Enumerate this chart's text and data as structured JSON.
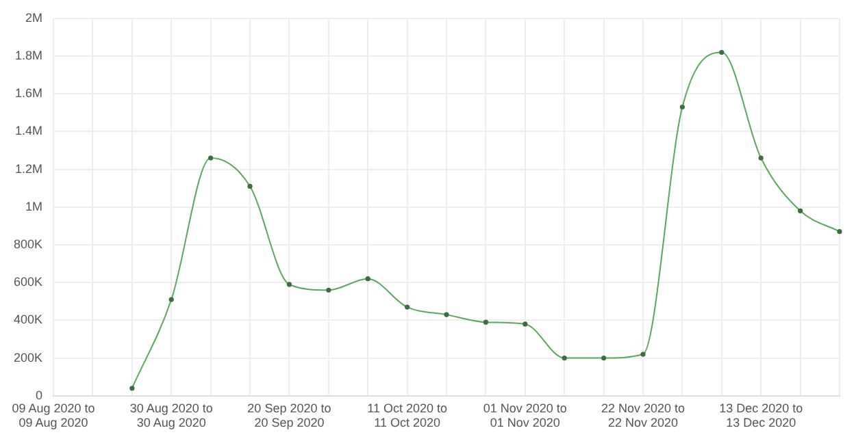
{
  "chart_data": {
    "type": "line",
    "categories": [
      "09 Aug 2020 to 09 Aug 2020",
      null,
      null,
      "30 Aug 2020 to 30 Aug 2020",
      null,
      null,
      "20 Sep 2020 to 20 Sep 2020",
      null,
      null,
      "11 Oct 2020 to 11 Oct 2020",
      null,
      null,
      "01 Nov 2020 to 01 Nov 2020",
      null,
      null,
      "22 Nov 2020 to 22 Nov 2020",
      null,
      null,
      "13 Dec 2020 to 13 Dec 2020",
      null,
      null
    ],
    "series": [
      {
        "color": "#5aa85a",
        "values": [
          null,
          null,
          40000,
          510000,
          1260000,
          1110000,
          590000,
          560000,
          620000,
          470000,
          430000,
          390000,
          380000,
          200000,
          200000,
          220000,
          1530000,
          1820000,
          1260000,
          980000,
          870000
        ]
      }
    ],
    "ylim": [
      0,
      2000000
    ],
    "yticks": [
      {
        "value": 0,
        "label": "0"
      },
      {
        "value": 200000,
        "label": "200K"
      },
      {
        "value": 400000,
        "label": "400K"
      },
      {
        "value": 600000,
        "label": "600K"
      },
      {
        "value": 800000,
        "label": "800K"
      },
      {
        "value": 1000000,
        "label": "1M"
      },
      {
        "value": 1200000,
        "label": "1.2M"
      },
      {
        "value": 1400000,
        "label": "1.4M"
      },
      {
        "value": 1600000,
        "label": "1.6M"
      },
      {
        "value": 1800000,
        "label": "1.8M"
      },
      {
        "value": 2000000,
        "label": "2M"
      }
    ],
    "grid": true,
    "legend": false,
    "marker": "circle",
    "line_style": "solid"
  }
}
